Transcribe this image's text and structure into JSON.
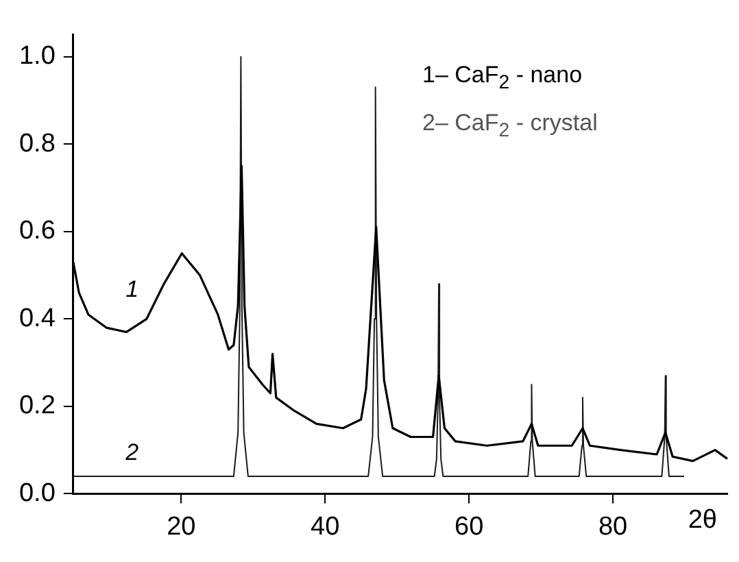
{
  "chart_data": {
    "type": "line",
    "xlabel": "2θ",
    "xlim": [
      5,
      96
    ],
    "xticks": [
      20,
      40,
      60,
      80
    ],
    "ylim": [
      0,
      1.05
    ],
    "yticks": [
      {
        "value": 0,
        "label": "0.0"
      },
      {
        "value": 0.2,
        "label": "0.2"
      },
      {
        "value": 0.4,
        "label": "0.4"
      },
      {
        "value": 0.6,
        "label": "0.6"
      },
      {
        "value": 0.8,
        "label": "0.8"
      },
      {
        "value": 1,
        "label": "1.0"
      }
    ],
    "grid": false,
    "legend": false,
    "marker": "none",
    "line_style": "solid",
    "annotations": [
      "1– CaF$_{2}$ - nano",
      "2– CaF$_{2}$ - crystal"
    ],
    "series": [
      {
        "name": "1",
        "color": "#000000",
        "x": [
          5,
          5.8,
          7.1,
          9.6,
          12.4,
          15.2,
          17.6,
          20.1,
          22.6,
          25.1,
          26.6,
          27.3,
          27.9,
          28.4,
          28.8,
          29.4,
          31.3,
          32.4,
          32.7,
          33.2,
          35.7,
          38.8,
          42.5,
          45,
          45.7,
          47.1,
          48.2,
          49.4,
          51.9,
          55,
          55.8,
          56.6,
          58.1,
          62.5,
          67.5,
          68.7,
          69.6,
          74.3,
          75.8,
          76.8,
          81.1,
          86.1,
          87.3,
          88.3,
          91.1,
          94.2,
          95.9
        ],
        "values": [
          0.53,
          0.46,
          0.41,
          0.38,
          0.37,
          0.4,
          0.48,
          0.55,
          0.5,
          0.41,
          0.33,
          0.34,
          0.43,
          0.75,
          0.43,
          0.29,
          0.25,
          0.23,
          0.32,
          0.22,
          0.19,
          0.16,
          0.15,
          0.17,
          0.24,
          0.61,
          0.26,
          0.15,
          0.13,
          0.13,
          0.27,
          0.15,
          0.12,
          0.11,
          0.12,
          0.16,
          0.11,
          0.11,
          0.15,
          0.11,
          0.1,
          0.09,
          0.14,
          0.085,
          0.075,
          0.1,
          0.08
        ]
      },
      {
        "name": "2",
        "color": "#1a1a1a",
        "x": [
          5,
          27.3,
          27.9,
          28.15,
          28.3,
          28.45,
          28.7,
          29.3,
          46,
          46.6,
          46.85,
          47,
          47.15,
          47.4,
          48,
          55.2,
          55.5,
          55.7,
          55.8,
          55.9,
          56.1,
          56.4,
          68.2,
          68.6,
          68.7,
          68.8,
          69.2,
          75.3,
          75.7,
          75.8,
          75.9,
          76.3,
          86.8,
          87.2,
          87.3,
          87.4,
          87.8,
          89.9
        ],
        "values": [
          0.04,
          0.04,
          0.14,
          0.42,
          1,
          0.42,
          0.14,
          0.04,
          0.04,
          0.13,
          0.4,
          0.93,
          0.4,
          0.13,
          0.04,
          0.04,
          0.08,
          0.22,
          0.48,
          0.22,
          0.08,
          0.04,
          0.04,
          0.12,
          0.25,
          0.12,
          0.04,
          0.04,
          0.11,
          0.22,
          0.11,
          0.04,
          0.04,
          0.13,
          0.27,
          0.13,
          0.04,
          0.04
        ]
      }
    ]
  }
}
